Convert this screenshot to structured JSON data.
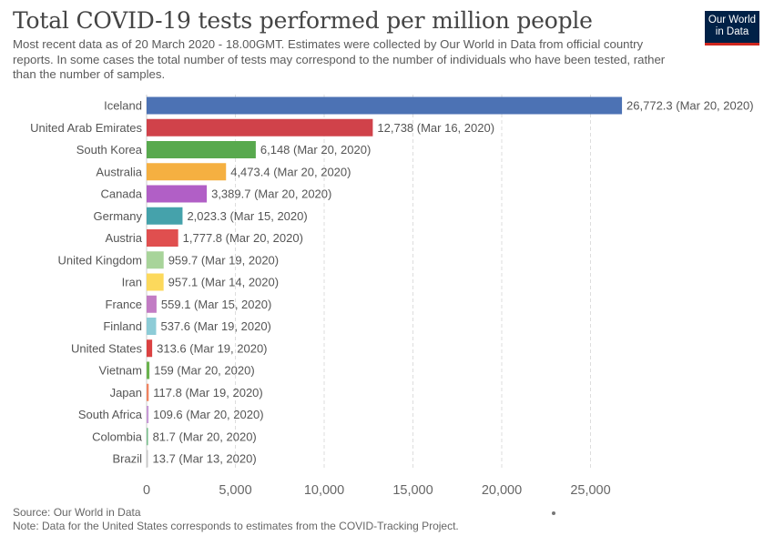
{
  "header": {
    "title": "Total COVID-19 tests performed per million people",
    "subtitle": "Most recent data as of 20 March 2020 - 18.00GMT. Estimates were collected by Our World in Data from official country reports. In some cases the total number of tests may correspond to the number of individuals who have been tested, rather than the number of samples.",
    "logo_line1": "Our World",
    "logo_line2": "in Data"
  },
  "footer": {
    "source": "Source: Our World in Data",
    "note": "Note: Data for the United States corresponds to estimates from the COVID-Tracking Project."
  },
  "chart_data": {
    "type": "bar",
    "orientation": "horizontal",
    "title": "Total COVID-19 tests performed per million people",
    "xlabel": "",
    "ylabel": "",
    "xlim": [
      0,
      27000
    ],
    "xticks": [
      0,
      5000,
      10000,
      15000,
      20000,
      25000
    ],
    "xtick_labels": [
      "0",
      "5,000",
      "10,000",
      "15,000",
      "20,000",
      "25,000"
    ],
    "grid": "vertical dashed",
    "categories": [
      "Iceland",
      "United Arab Emirates",
      "South Korea",
      "Australia",
      "Canada",
      "Germany",
      "Austria",
      "United Kingdom",
      "Iran",
      "France",
      "Finland",
      "United States",
      "Vietnam",
      "Japan",
      "South Africa",
      "Colombia",
      "Brazil"
    ],
    "values": [
      26772.3,
      12738,
      6148,
      4473.4,
      3389.7,
      2023.3,
      1777.8,
      959.7,
      957.1,
      559.1,
      537.6,
      313.6,
      159,
      117.8,
      109.6,
      81.7,
      13.7
    ],
    "data_labels": [
      "26,772.3 (Mar 20, 2020)",
      "12,738 (Mar 16, 2020)",
      "6,148 (Mar 20, 2020)",
      "4,473.4 (Mar 20, 2020)",
      "3,389.7 (Mar 20, 2020)",
      "2,023.3 (Mar 15, 2020)",
      "1,777.8 (Mar 20, 2020)",
      "959.7 (Mar 19, 2020)",
      "957.1 (Mar 14, 2020)",
      "559.1 (Mar 15, 2020)",
      "537.6 (Mar 19, 2020)",
      "313.6 (Mar 19, 2020)",
      "159 (Mar 20, 2020)",
      "117.8 (Mar 19, 2020)",
      "109.6 (Mar 20, 2020)",
      "81.7 (Mar 20, 2020)",
      "13.7 (Mar 13, 2020)"
    ],
    "colors": [
      "#4c72b4",
      "#d0424a",
      "#58a94e",
      "#f5b041",
      "#b15fc6",
      "#45a2ab",
      "#e04f4f",
      "#a8d49a",
      "#fcd95c",
      "#c27cc4",
      "#8dccd7",
      "#db4242",
      "#6ab24e",
      "#f08360",
      "#c79bd6",
      "#7bbf8e",
      "#c7c7c7"
    ]
  }
}
